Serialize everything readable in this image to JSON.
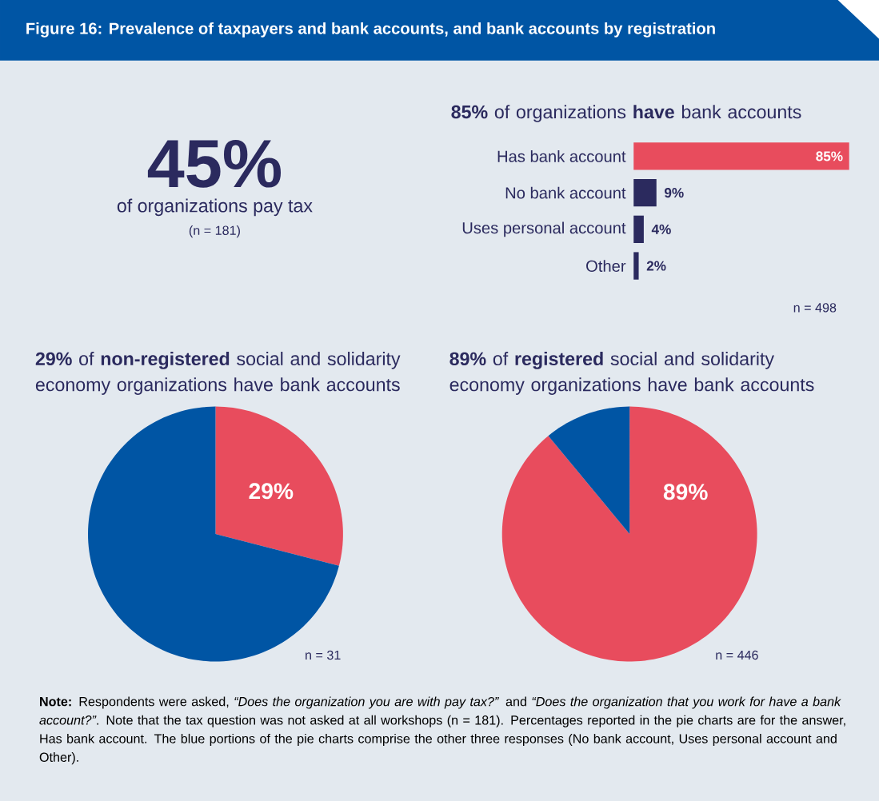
{
  "chart_data": [
    {
      "type": "other",
      "title": "Figure 16: Prevalence of taxpayers and bank accounts, and bank accounts by registration",
      "annotations": [
        "45%",
        "of organizations pay tax",
        "(n = 181)"
      ]
    },
    {
      "type": "bar",
      "orientation": "horizontal",
      "title": "**85%** of organizations **have** bank accounts",
      "categories": [
        "Has bank account",
        "No bank account",
        "Uses personal account",
        "Other"
      ],
      "values": [
        85,
        9,
        4,
        2
      ],
      "colors": [
        "#e84c5d",
        "#2b2a5e",
        "#2b2a5e",
        "#2b2a5e"
      ],
      "value_labels": [
        "85%",
        "9%",
        "4%",
        "2%"
      ],
      "annotations": [
        "n = 498"
      ]
    },
    {
      "type": "pie",
      "title": "**29%** of **non-registered** social and solidarity economy organizations have bank accounts",
      "categories": [
        null,
        null
      ],
      "values": [
        29,
        71
      ],
      "colors": [
        "#e84c5d",
        "#0055a4"
      ],
      "value_labels": [
        "29%",
        null
      ],
      "annotations": [
        "n = 31"
      ]
    },
    {
      "type": "pie",
      "title": "**89%** of **registered** social and solidarity economy organizations have bank accounts",
      "categories": [
        null,
        null
      ],
      "values": [
        89,
        11
      ],
      "colors": [
        "#e84c5d",
        "#0055a4"
      ],
      "value_labels": [
        "89%",
        null
      ],
      "annotations": [
        "n = 446"
      ]
    },
    {
      "type": "other",
      "annotations": [
        "**Note:** Respondents were asked, *“Does the organization you are with pay tax?”* and *“Does the organization that you work for have a bank account?”*. Note that the tax question was not asked at all workshops (n = 181). Percentages reported in the pie charts are for the answer, Has bank account. The blue portions of the pie charts comprise the other three responses (No bank account, Uses personal account and Other)."
      ]
    }
  ]
}
